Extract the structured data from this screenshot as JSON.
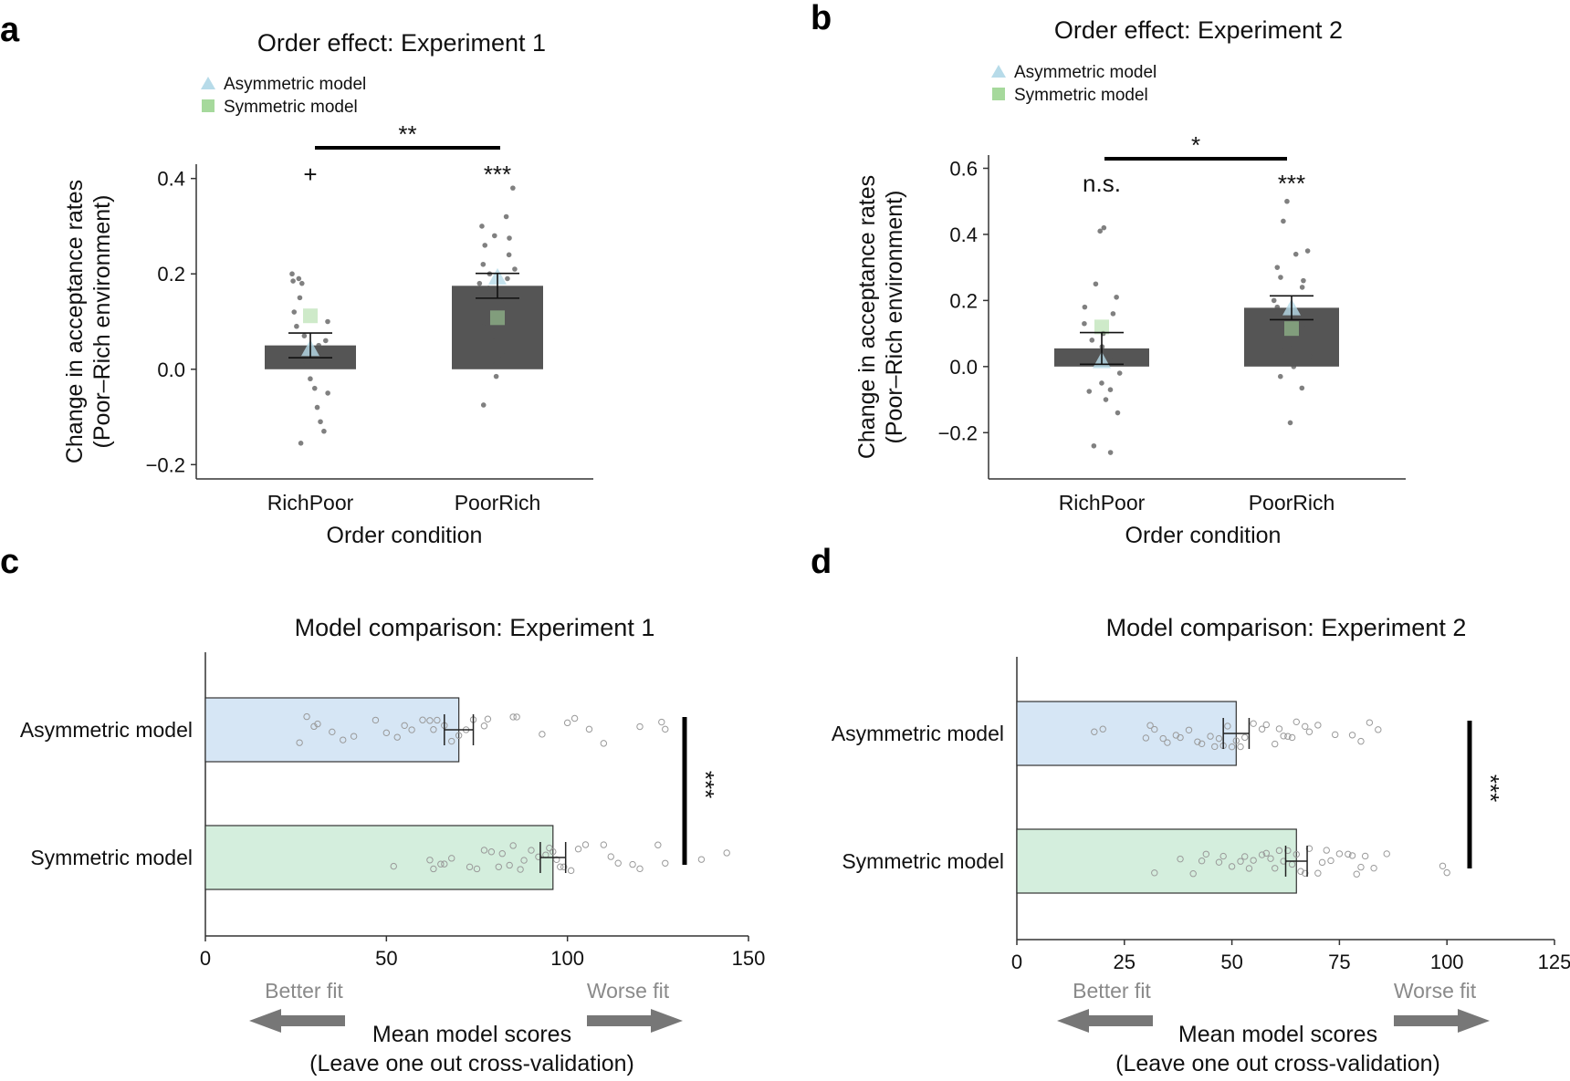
{
  "chart_data": [
    {
      "panel": "a",
      "type": "bar",
      "title": "Order effect: Experiment 1",
      "xlabel": "Order condition",
      "ylabel": [
        "Change in acceptance rates",
        "(Poor–Rich environment)"
      ],
      "categories": [
        "RichPoor",
        "PoorRich"
      ],
      "ylim": [
        -0.23,
        0.43
      ],
      "yticks": [
        -0.2,
        0.0,
        0.2,
        0.4
      ],
      "ytick_labels": [
        "−0.2",
        "0.0",
        "0.2",
        "0.4"
      ],
      "values": [
        0.05,
        0.175
      ],
      "errors": [
        0.026,
        0.026
      ],
      "bar_color": "#555555",
      "legend": [
        {
          "label": "Asymmetric model",
          "marker": "triangle",
          "color": "#b7dbe9"
        },
        {
          "label": "Symmetric model",
          "marker": "square",
          "color": "#a6d99c"
        }
      ],
      "model_points": {
        "asymmetric": [
          0.045,
          0.195
        ],
        "symmetric": [
          0.112,
          0.108
        ]
      },
      "individual_points": [
        [
          0.2,
          0.19,
          0.185,
          0.18,
          0.15,
          0.12,
          0.1,
          0.09,
          0.07,
          0.06,
          0.05,
          0.04,
          0.02,
          0.01,
          -0.02,
          -0.04,
          -0.05,
          -0.08,
          -0.11,
          -0.13,
          -0.155
        ],
        [
          0.38,
          0.32,
          0.3,
          0.28,
          0.275,
          0.26,
          0.24,
          0.22,
          0.21,
          0.2,
          0.19,
          0.18,
          0.17,
          0.15,
          0.12,
          0.09,
          0.06,
          0.03,
          0.01,
          -0.015,
          -0.075
        ]
      ],
      "significance": {
        "bracket": "**",
        "per_condition": [
          "+",
          "***"
        ]
      }
    },
    {
      "panel": "b",
      "type": "bar",
      "title": "Order effect: Experiment 2",
      "xlabel": "Order condition",
      "ylabel": [
        "Change in acceptance rates",
        "(Poor–Rich environment)"
      ],
      "categories": [
        "RichPoor",
        "PoorRich"
      ],
      "ylim": [
        -0.34,
        0.64
      ],
      "yticks": [
        -0.2,
        0.0,
        0.2,
        0.4,
        0.6
      ],
      "ytick_labels": [
        "−0.2",
        "0.0",
        "0.2",
        "0.4",
        "0.6"
      ],
      "values": [
        0.055,
        0.178
      ],
      "errors": [
        0.048,
        0.036
      ],
      "bar_color": "#555555",
      "legend": [
        {
          "label": "Asymmetric model",
          "marker": "triangle",
          "color": "#b7dbe9"
        },
        {
          "label": "Symmetric model",
          "marker": "square",
          "color": "#a6d99c"
        }
      ],
      "model_points": {
        "asymmetric": [
          0.02,
          0.18
        ],
        "symmetric": [
          0.12,
          0.115
        ]
      },
      "individual_points": [
        [
          0.42,
          0.41,
          0.25,
          0.21,
          0.18,
          0.16,
          0.13,
          0.1,
          0.08,
          0.06,
          0.04,
          0.02,
          -0.02,
          -0.05,
          -0.07,
          -0.075,
          -0.1,
          -0.14,
          -0.24,
          -0.26
        ],
        [
          0.5,
          0.44,
          0.35,
          0.34,
          0.3,
          0.27,
          0.26,
          0.24,
          0.2,
          0.18,
          0.15,
          0.13,
          0.12,
          0.1,
          0.09,
          0.07,
          0.05,
          0.03,
          0.0,
          -0.03,
          -0.065,
          -0.17
        ]
      ],
      "significance": {
        "bracket": "*",
        "per_condition": [
          "n.s.",
          "***"
        ]
      }
    },
    {
      "panel": "c",
      "type": "bar",
      "orientation": "horizontal",
      "title": "Model comparison: Experiment 1",
      "xlabel": [
        "Mean model scores",
        "(Leave one out cross-validation)"
      ],
      "categories": [
        "Asymmetric model",
        "Symmetric model"
      ],
      "xlim": [
        0,
        150
      ],
      "xticks": [
        0,
        50,
        100,
        150
      ],
      "values": [
        70,
        96
      ],
      "errors": [
        4,
        3.5
      ],
      "colors": [
        "#d6e6f5",
        "#d4eedd"
      ],
      "individual_points": [
        [
          26,
          28,
          30,
          31,
          35,
          38,
          41,
          47,
          50,
          53,
          55,
          57,
          60,
          62,
          63,
          64,
          66,
          68,
          70,
          72,
          74,
          77,
          78,
          85,
          86,
          93,
          100,
          102,
          106,
          110,
          120,
          126,
          127
        ],
        [
          52,
          62,
          63,
          65,
          66,
          68,
          73,
          75,
          77,
          79,
          81,
          82,
          84,
          85,
          87,
          88,
          90,
          92,
          94,
          95,
          96,
          97,
          98,
          99,
          101,
          103,
          105,
          110,
          112,
          114,
          118,
          120,
          125,
          127,
          137,
          144
        ]
      ],
      "fit_labels": {
        "better": "Better fit",
        "worse": "Worse fit"
      },
      "significance": "***"
    },
    {
      "panel": "d",
      "type": "bar",
      "orientation": "horizontal",
      "title": "Model comparison: Experiment 2",
      "xlabel": [
        "Mean model scores",
        "(Leave one out cross-validation)"
      ],
      "categories": [
        "Asymmetric model",
        "Symmetric model"
      ],
      "xlim": [
        0,
        125
      ],
      "xticks": [
        0,
        25,
        50,
        75,
        100,
        125
      ],
      "values": [
        51,
        65
      ],
      "errors": [
        3,
        2.5
      ],
      "colors": [
        "#d6e6f5",
        "#d4eedd"
      ],
      "individual_points": [
        [
          18,
          20,
          30,
          31,
          32,
          34,
          35,
          37,
          38,
          40,
          42,
          43,
          45,
          46,
          47,
          48,
          49,
          50,
          51,
          52,
          53,
          55,
          57,
          58,
          60,
          61,
          62,
          63,
          64,
          65,
          67,
          68,
          70,
          74,
          78,
          80,
          82,
          84
        ],
        [
          32,
          38,
          41,
          43,
          44,
          47,
          48,
          50,
          52,
          53,
          54,
          55,
          57,
          58,
          59,
          60,
          61,
          62,
          63,
          64,
          65,
          66,
          67,
          68,
          70,
          71,
          72,
          73,
          75,
          77,
          78,
          79,
          80,
          81,
          83,
          86,
          99,
          100
        ]
      ],
      "fit_labels": {
        "better": "Better fit",
        "worse": "Worse fit"
      },
      "significance": "***"
    }
  ]
}
